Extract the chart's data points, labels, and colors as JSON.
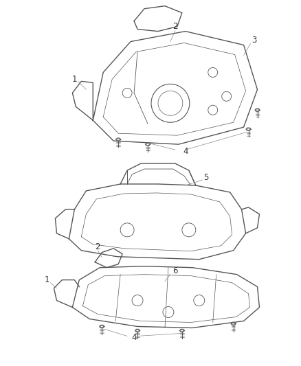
{
  "background_color": "#ffffff",
  "line_color": "#555555",
  "label_color": "#333333",
  "label_fontsize": 8.5,
  "fig_width": 4.38,
  "fig_height": 5.33,
  "dpi": 100
}
